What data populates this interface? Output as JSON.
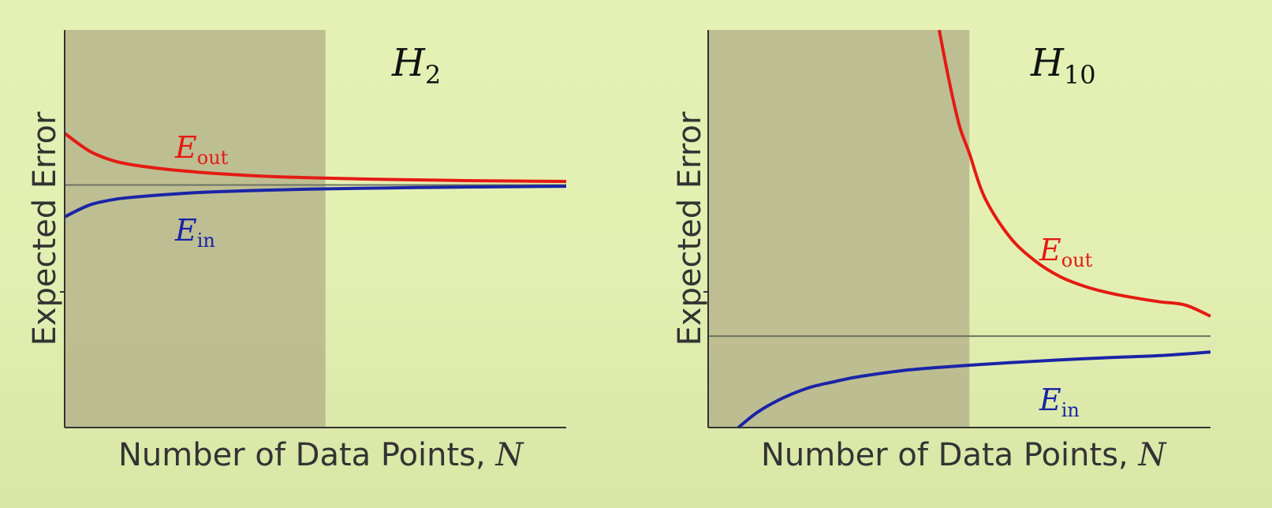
{
  "chart_data": [
    {
      "type": "line",
      "title_main": "H",
      "title_sub": "2",
      "xlabel_text": "Number of Data Points, ",
      "xlabel_var": "N",
      "ylabel": "Expected Error",
      "xlim": [
        0,
        100
      ],
      "ylim": [
        0,
        100
      ],
      "grid": false,
      "shaded_region_x": [
        0,
        52
      ],
      "asymptote_y": 61,
      "series": [
        {
          "name_main": "E",
          "name_sub": "out",
          "color": "#e41b13",
          "x": [
            0,
            5,
            10,
            15,
            20,
            25,
            30,
            40,
            50,
            60,
            70,
            80,
            90,
            100
          ],
          "y": [
            74,
            69.5,
            67,
            65.8,
            65,
            64.4,
            63.9,
            63.2,
            62.8,
            62.5,
            62.3,
            62.1,
            62.0,
            61.9
          ]
        },
        {
          "name_main": "E",
          "name_sub": "in",
          "color": "#1a24a6",
          "x": [
            0,
            5,
            10,
            15,
            20,
            25,
            30,
            40,
            50,
            60,
            70,
            80,
            90,
            100
          ],
          "y": [
            53,
            56,
            57.4,
            58.1,
            58.6,
            59.0,
            59.3,
            59.7,
            60.0,
            60.2,
            60.35,
            60.5,
            60.6,
            60.7
          ]
        }
      ]
    },
    {
      "type": "line",
      "title_main": "H",
      "title_sub": "10",
      "xlabel_text": "Number of Data Points, ",
      "xlabel_var": "N",
      "ylabel": "Expected Error",
      "xlim": [
        0,
        100
      ],
      "ylim": [
        0,
        100
      ],
      "grid": false,
      "shaded_region_x": [
        0,
        52
      ],
      "asymptote_y": 23,
      "series": [
        {
          "name_main": "E",
          "name_sub": "out",
          "color": "#e41b13",
          "x": [
            46,
            48,
            50,
            52,
            55,
            60,
            65,
            70,
            75,
            80,
            85,
            90,
            95,
            100
          ],
          "y": [
            100,
            87,
            76,
            69,
            58,
            48,
            42,
            38,
            35.5,
            33.8,
            32.6,
            31.6,
            30.8,
            28
          ]
        },
        {
          "name_main": "E",
          "name_sub": "in",
          "color": "#1a24a6",
          "x": [
            6,
            10,
            15,
            20,
            25,
            30,
            40,
            50,
            60,
            70,
            80,
            90,
            100
          ],
          "y": [
            0,
            4,
            7.5,
            10,
            11.5,
            12.8,
            14.5,
            15.5,
            16.3,
            17,
            17.6,
            18.1,
            19
          ]
        }
      ]
    }
  ]
}
